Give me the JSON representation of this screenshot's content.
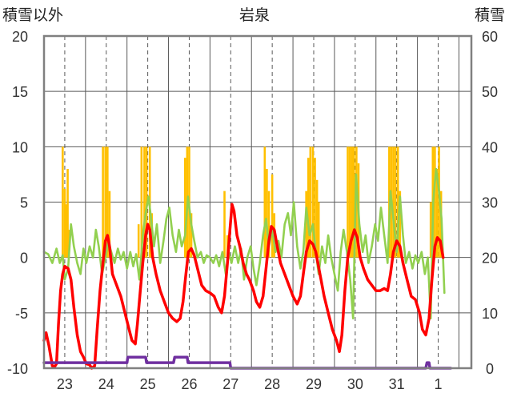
{
  "chart_data": {
    "type": "line",
    "title": "岩泉",
    "ylabel_left": "積雪以外",
    "ylabel_right": "積雪",
    "ylim_left": [
      -10,
      20
    ],
    "ylim_right": [
      0,
      60
    ],
    "left_ticks": [
      "20",
      "15",
      "10",
      "5",
      "0",
      "-5",
      "-10"
    ],
    "right_ticks": [
      "60",
      "50",
      "40",
      "30",
      "20",
      "10",
      "0"
    ],
    "x_day_start": 22.5,
    "x_day_end": 32.8,
    "days": [
      "23",
      "24",
      "25",
      "26",
      "27",
      "28",
      "29",
      "30",
      "31",
      "1"
    ],
    "colors": {
      "precip": "#ffc000",
      "temperature": "#ff0000",
      "wind": "#92d050",
      "snow": "#7030a0",
      "grid": "#595959",
      "frame": "#808080"
    },
    "precip_bars": [
      [
        22.95,
        10.0
      ],
      [
        23.0,
        6.2
      ],
      [
        23.03,
        4.8
      ],
      [
        23.07,
        8.0
      ],
      [
        23.1,
        2.5
      ],
      [
        23.92,
        10.0
      ],
      [
        23.98,
        10.0
      ],
      [
        24.03,
        10.0
      ],
      [
        24.08,
        6.0
      ],
      [
        24.78,
        3.0
      ],
      [
        24.85,
        10.0
      ],
      [
        24.92,
        10.0
      ],
      [
        24.97,
        10.0
      ],
      [
        25.05,
        10.0
      ],
      [
        25.1,
        4.0
      ],
      [
        25.9,
        9.0
      ],
      [
        25.95,
        10.0
      ],
      [
        26.0,
        10.0
      ],
      [
        26.05,
        4.0
      ],
      [
        26.85,
        6.0
      ],
      [
        26.92,
        2.0
      ],
      [
        27.82,
        10.0
      ],
      [
        27.87,
        8.0
      ],
      [
        27.92,
        6.0
      ],
      [
        28.0,
        7.5
      ],
      [
        28.05,
        4.0
      ],
      [
        28.82,
        6.0
      ],
      [
        28.87,
        9.0
      ],
      [
        28.92,
        10.0
      ],
      [
        28.98,
        10.0
      ],
      [
        29.03,
        9.0
      ],
      [
        29.08,
        7.0
      ],
      [
        29.12,
        5.0
      ],
      [
        29.82,
        10.0
      ],
      [
        29.87,
        10.0
      ],
      [
        29.92,
        10.0
      ],
      [
        29.97,
        10.0
      ],
      [
        30.03,
        10.0
      ],
      [
        30.08,
        8.5
      ],
      [
        30.82,
        10.0
      ],
      [
        30.87,
        10.0
      ],
      [
        30.92,
        10.0
      ],
      [
        30.97,
        10.0
      ],
      [
        31.03,
        10.0
      ],
      [
        31.08,
        6.0
      ],
      [
        31.82,
        5.0
      ],
      [
        31.87,
        10.0
      ],
      [
        31.92,
        10.0
      ],
      [
        31.97,
        8.0
      ],
      [
        32.02,
        10.0
      ],
      [
        32.07,
        6.0
      ]
    ],
    "temperature_series": [
      [
        22.5,
        -7.5
      ],
      [
        22.55,
        -6.8
      ],
      [
        22.62,
        -8.0
      ],
      [
        22.7,
        -9.8
      ],
      [
        22.75,
        -9.9
      ],
      [
        22.8,
        -9.6
      ],
      [
        22.85,
        -6.0
      ],
      [
        22.9,
        -3.0
      ],
      [
        22.95,
        -1.5
      ],
      [
        23.0,
        -0.8
      ],
      [
        23.08,
        -1.0
      ],
      [
        23.15,
        -2.0
      ],
      [
        23.22,
        -4.5
      ],
      [
        23.3,
        -7.0
      ],
      [
        23.38,
        -8.5
      ],
      [
        23.45,
        -9.0
      ],
      [
        23.52,
        -9.6
      ],
      [
        23.6,
        -9.7
      ],
      [
        23.65,
        -10.0
      ],
      [
        23.72,
        -9.8
      ],
      [
        23.78,
        -6.5
      ],
      [
        23.85,
        -3.0
      ],
      [
        23.92,
        -0.5
      ],
      [
        23.98,
        1.5
      ],
      [
        24.03,
        2.0
      ],
      [
        24.08,
        1.0
      ],
      [
        24.15,
        -1.5
      ],
      [
        24.25,
        -2.5
      ],
      [
        24.35,
        -3.5
      ],
      [
        24.45,
        -5.0
      ],
      [
        24.55,
        -6.5
      ],
      [
        24.62,
        -7.5
      ],
      [
        24.7,
        -7.8
      ],
      [
        24.75,
        -6.0
      ],
      [
        24.82,
        -3.0
      ],
      [
        24.88,
        -0.5
      ],
      [
        24.95,
        2.0
      ],
      [
        25.0,
        3.0
      ],
      [
        25.05,
        2.5
      ],
      [
        25.12,
        0.0
      ],
      [
        25.2,
        -1.5
      ],
      [
        25.3,
        -3.0
      ],
      [
        25.4,
        -4.0
      ],
      [
        25.5,
        -5.0
      ],
      [
        25.6,
        -5.5
      ],
      [
        25.7,
        -5.8
      ],
      [
        25.78,
        -5.5
      ],
      [
        25.85,
        -4.0
      ],
      [
        25.92,
        -1.5
      ],
      [
        25.98,
        0.5
      ],
      [
        26.05,
        0.8
      ],
      [
        26.12,
        0.2
      ],
      [
        26.2,
        -1.0
      ],
      [
        26.3,
        -2.5
      ],
      [
        26.4,
        -3.0
      ],
      [
        26.5,
        -3.2
      ],
      [
        26.6,
        -3.5
      ],
      [
        26.7,
        -4.5
      ],
      [
        26.78,
        -5.0
      ],
      [
        26.85,
        -3.5
      ],
      [
        26.92,
        -0.5
      ],
      [
        26.98,
        2.5
      ],
      [
        27.03,
        4.8
      ],
      [
        27.08,
        4.2
      ],
      [
        27.15,
        2.0
      ],
      [
        27.22,
        1.0
      ],
      [
        27.3,
        -0.5
      ],
      [
        27.38,
        -1.5
      ],
      [
        27.45,
        -2.0
      ],
      [
        27.55,
        -3.0
      ],
      [
        27.62,
        -4.0
      ],
      [
        27.7,
        -4.5
      ],
      [
        27.78,
        -3.5
      ],
      [
        27.85,
        -1.0
      ],
      [
        27.92,
        1.5
      ],
      [
        27.98,
        2.8
      ],
      [
        28.05,
        2.5
      ],
      [
        28.12,
        1.0
      ],
      [
        28.2,
        -0.5
      ],
      [
        28.3,
        -1.5
      ],
      [
        28.4,
        -2.5
      ],
      [
        28.5,
        -3.5
      ],
      [
        28.6,
        -4.2
      ],
      [
        28.68,
        -3.5
      ],
      [
        28.75,
        -1.5
      ],
      [
        28.82,
        0.5
      ],
      [
        28.9,
        1.5
      ],
      [
        28.98,
        1.2
      ],
      [
        29.05,
        0.5
      ],
      [
        29.15,
        -1.5
      ],
      [
        29.25,
        -3.5
      ],
      [
        29.35,
        -5.0
      ],
      [
        29.45,
        -6.5
      ],
      [
        29.55,
        -7.5
      ],
      [
        29.62,
        -8.5
      ],
      [
        29.68,
        -7.0
      ],
      [
        29.75,
        -3.0
      ],
      [
        29.82,
        0.0
      ],
      [
        29.9,
        1.5
      ],
      [
        29.98,
        2.5
      ],
      [
        30.05,
        1.8
      ],
      [
        30.12,
        0.0
      ],
      [
        30.2,
        -1.0
      ],
      [
        30.3,
        -2.0
      ],
      [
        30.4,
        -2.5
      ],
      [
        30.5,
        -3.0
      ],
      [
        30.6,
        -3.0
      ],
      [
        30.7,
        -2.8
      ],
      [
        30.78,
        -3.0
      ],
      [
        30.85,
        -1.5
      ],
      [
        30.92,
        0.5
      ],
      [
        31.0,
        1.5
      ],
      [
        31.08,
        1.0
      ],
      [
        31.15,
        -0.5
      ],
      [
        31.25,
        -2.0
      ],
      [
        31.35,
        -3.5
      ],
      [
        31.45,
        -3.8
      ],
      [
        31.55,
        -5.0
      ],
      [
        31.62,
        -6.5
      ],
      [
        31.7,
        -7.0
      ],
      [
        31.78,
        -5.5
      ],
      [
        31.85,
        -2.0
      ],
      [
        31.92,
        1.0
      ],
      [
        31.98,
        1.8
      ],
      [
        32.05,
        1.5
      ],
      [
        32.12,
        0.0
      ]
    ],
    "wind_series": [
      [
        22.5,
        0.5
      ],
      [
        22.6,
        0.3
      ],
      [
        22.7,
        -0.5
      ],
      [
        22.8,
        0.8
      ],
      [
        22.88,
        -0.5
      ],
      [
        22.95,
        0.2
      ],
      [
        23.0,
        -2.0
      ],
      [
        23.08,
        -1.0
      ],
      [
        23.15,
        3.0
      ],
      [
        23.22,
        1.0
      ],
      [
        23.3,
        -0.5
      ],
      [
        23.38,
        -1.5
      ],
      [
        23.45,
        0.8
      ],
      [
        23.52,
        -0.5
      ],
      [
        23.6,
        1.0
      ],
      [
        23.68,
        0.0
      ],
      [
        23.75,
        2.5
      ],
      [
        23.82,
        1.0
      ],
      [
        23.9,
        -1.5
      ],
      [
        23.98,
        0.0
      ],
      [
        24.05,
        1.5
      ],
      [
        24.12,
        0.5
      ],
      [
        24.2,
        -0.5
      ],
      [
        24.28,
        0.8
      ],
      [
        24.35,
        -0.2
      ],
      [
        24.42,
        0.5
      ],
      [
        24.5,
        -1.0
      ],
      [
        24.58,
        0.5
      ],
      [
        24.65,
        -0.8
      ],
      [
        24.72,
        0.3
      ],
      [
        24.8,
        -2.0
      ],
      [
        24.88,
        2.0
      ],
      [
        24.95,
        4.0
      ],
      [
        25.02,
        5.5
      ],
      [
        25.08,
        3.5
      ],
      [
        25.15,
        1.0
      ],
      [
        25.22,
        3.0
      ],
      [
        25.3,
        -0.5
      ],
      [
        25.38,
        1.5
      ],
      [
        25.45,
        3.5
      ],
      [
        25.52,
        4.5
      ],
      [
        25.6,
        2.0
      ],
      [
        25.68,
        0.5
      ],
      [
        25.75,
        2.5
      ],
      [
        25.82,
        1.0
      ],
      [
        25.9,
        2.0
      ],
      [
        25.97,
        5.5
      ],
      [
        26.05,
        3.0
      ],
      [
        26.12,
        1.5
      ],
      [
        26.2,
        0.0
      ],
      [
        26.28,
        0.5
      ],
      [
        26.35,
        -0.5
      ],
      [
        26.42,
        0.2
      ],
      [
        26.5,
        0.0
      ],
      [
        26.58,
        -0.5
      ],
      [
        26.65,
        0.2
      ],
      [
        26.72,
        -0.8
      ],
      [
        26.8,
        0.5
      ],
      [
        26.88,
        -1.5
      ],
      [
        26.95,
        0.5
      ],
      [
        27.02,
        -0.5
      ],
      [
        27.1,
        1.0
      ],
      [
        27.18,
        -0.5
      ],
      [
        27.25,
        0.8
      ],
      [
        27.32,
        -2.0
      ],
      [
        27.4,
        0.0
      ],
      [
        27.48,
        1.0
      ],
      [
        27.55,
        -1.0
      ],
      [
        27.62,
        -2.5
      ],
      [
        27.7,
        -0.5
      ],
      [
        27.78,
        2.0
      ],
      [
        27.85,
        3.5
      ],
      [
        27.92,
        1.0
      ],
      [
        28.0,
        2.5
      ],
      [
        28.08,
        0.5
      ],
      [
        28.15,
        1.5
      ],
      [
        28.22,
        0.0
      ],
      [
        28.3,
        3.0
      ],
      [
        28.38,
        4.0
      ],
      [
        28.45,
        2.0
      ],
      [
        28.52,
        5.0
      ],
      [
        28.6,
        1.0
      ],
      [
        28.68,
        -1.0
      ],
      [
        28.75,
        0.5
      ],
      [
        28.82,
        4.5
      ],
      [
        28.9,
        2.0
      ],
      [
        28.98,
        3.0
      ],
      [
        29.05,
        0.5
      ],
      [
        29.12,
        -1.5
      ],
      [
        29.2,
        1.0
      ],
      [
        29.28,
        -0.5
      ],
      [
        29.35,
        2.0
      ],
      [
        29.42,
        0.0
      ],
      [
        29.5,
        -1.5
      ],
      [
        29.58,
        -3.0
      ],
      [
        29.65,
        0.5
      ],
      [
        29.72,
        2.5
      ],
      [
        29.8,
        0.5
      ],
      [
        29.88,
        -2.0
      ],
      [
        29.95,
        -5.5
      ],
      [
        30.02,
        7.5
      ],
      [
        30.1,
        3.0
      ],
      [
        30.18,
        0.5
      ],
      [
        30.25,
        2.0
      ],
      [
        30.32,
        -0.5
      ],
      [
        30.4,
        1.0
      ],
      [
        30.48,
        3.0
      ],
      [
        30.55,
        1.5
      ],
      [
        30.62,
        4.5
      ],
      [
        30.7,
        2.0
      ],
      [
        30.78,
        -0.5
      ],
      [
        30.85,
        6.0
      ],
      [
        30.92,
        3.5
      ],
      [
        31.0,
        0.5
      ],
      [
        31.08,
        5.5
      ],
      [
        31.15,
        2.0
      ],
      [
        31.22,
        -0.5
      ],
      [
        31.3,
        0.5
      ],
      [
        31.38,
        -1.0
      ],
      [
        31.45,
        0.2
      ],
      [
        31.52,
        -0.5
      ],
      [
        31.6,
        0.5
      ],
      [
        31.68,
        -1.5
      ],
      [
        31.75,
        0.0
      ],
      [
        31.82,
        -5.5
      ],
      [
        31.88,
        5.0
      ],
      [
        31.95,
        8.0
      ],
      [
        32.02,
        6.0
      ],
      [
        32.08,
        3.5
      ],
      [
        32.15,
        -3.2
      ]
    ],
    "snow_series": [
      [
        22.5,
        1.0
      ],
      [
        24.5,
        1.0
      ],
      [
        24.52,
        2.0
      ],
      [
        24.95,
        2.0
      ],
      [
        24.97,
        1.0
      ],
      [
        25.62,
        1.0
      ],
      [
        25.65,
        2.0
      ],
      [
        25.95,
        2.0
      ],
      [
        25.97,
        1.0
      ],
      [
        26.98,
        1.0
      ],
      [
        27.0,
        0.0
      ],
      [
        31.7,
        0.0
      ],
      [
        31.73,
        1.0
      ],
      [
        31.78,
        1.0
      ],
      [
        31.8,
        0.0
      ],
      [
        32.3,
        0.0
      ]
    ]
  }
}
